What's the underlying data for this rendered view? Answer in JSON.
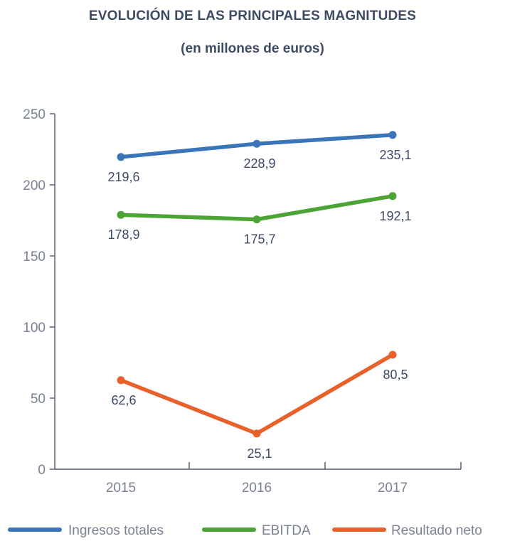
{
  "chart_data": {
    "type": "line",
    "title": "EVOLUCIÓN DE LAS PRINCIPALES MAGNITUDES",
    "subtitle": "(en millones de euros)",
    "categories": [
      "2015",
      "2016",
      "2017"
    ],
    "ylim": [
      0,
      250
    ],
    "yticks": [
      0,
      50,
      100,
      150,
      200,
      250
    ],
    "grid": false,
    "legend_position": "bottom",
    "series": [
      {
        "name": "Ingresos totales",
        "color": "#3a75b9",
        "values": [
          219.6,
          228.9,
          235.1
        ],
        "labels": [
          "219,6",
          "228,9",
          "235,1"
        ]
      },
      {
        "name": "EBITDA",
        "color": "#4ca435",
        "values": [
          178.9,
          175.7,
          192.1
        ],
        "labels": [
          "178,9",
          "175,7",
          "192,1"
        ]
      },
      {
        "name": "Resultado neto",
        "color": "#e8602a",
        "values": [
          62.6,
          25.1,
          80.5
        ],
        "labels": [
          "62,6",
          "25,1",
          "80,5"
        ]
      }
    ]
  }
}
